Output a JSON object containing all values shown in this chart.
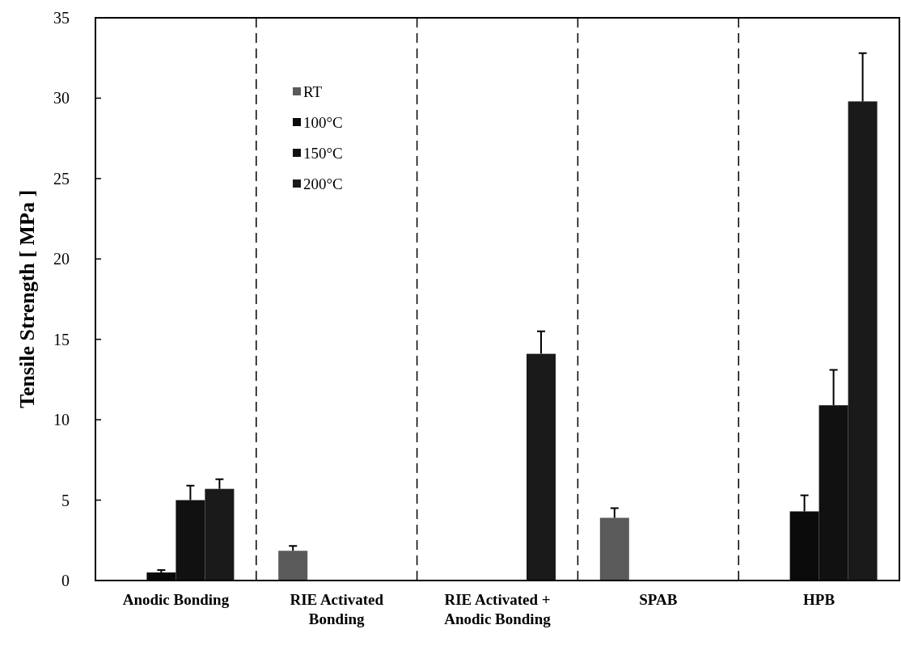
{
  "chart_data": {
    "type": "bar",
    "ylabel": "Tensile Strength [ MPa ]",
    "categories": [
      "Anodic Bonding",
      "RIE Activated Bonding",
      "RIE Activated + Anodic Bonding",
      "SPAB",
      "HPB"
    ],
    "series": [
      {
        "name": "RT",
        "color": "#5a5a5a",
        "values": [
          null,
          1.85,
          null,
          3.9,
          null
        ],
        "errors": [
          null,
          [
            1.85,
            2.15
          ],
          null,
          [
            3.9,
            4.5
          ],
          null
        ]
      },
      {
        "name": "100°C",
        "color": "#0a0a0a",
        "values": [
          0.5,
          null,
          null,
          null,
          4.3
        ],
        "errors": [
          [
            0.5,
            0.65
          ],
          null,
          null,
          null,
          [
            4.3,
            5.3
          ]
        ]
      },
      {
        "name": "150°C",
        "color": "#111111",
        "values": [
          5.0,
          null,
          null,
          null,
          10.9
        ],
        "errors": [
          [
            5.0,
            5.9
          ],
          null,
          null,
          null,
          [
            10.9,
            13.1
          ]
        ]
      },
      {
        "name": "200°C",
        "color": "#1a1a1a",
        "values": [
          5.7,
          null,
          14.1,
          null,
          29.8
        ],
        "errors": [
          [
            5.7,
            6.3
          ],
          null,
          [
            14.1,
            15.5
          ],
          null,
          [
            29.8,
            32.8
          ]
        ]
      }
    ],
    "ylim": [
      0,
      35
    ],
    "yticks": [
      0,
      5,
      10,
      15,
      20,
      25,
      30,
      35
    ],
    "grid": false,
    "legend": "top left"
  }
}
